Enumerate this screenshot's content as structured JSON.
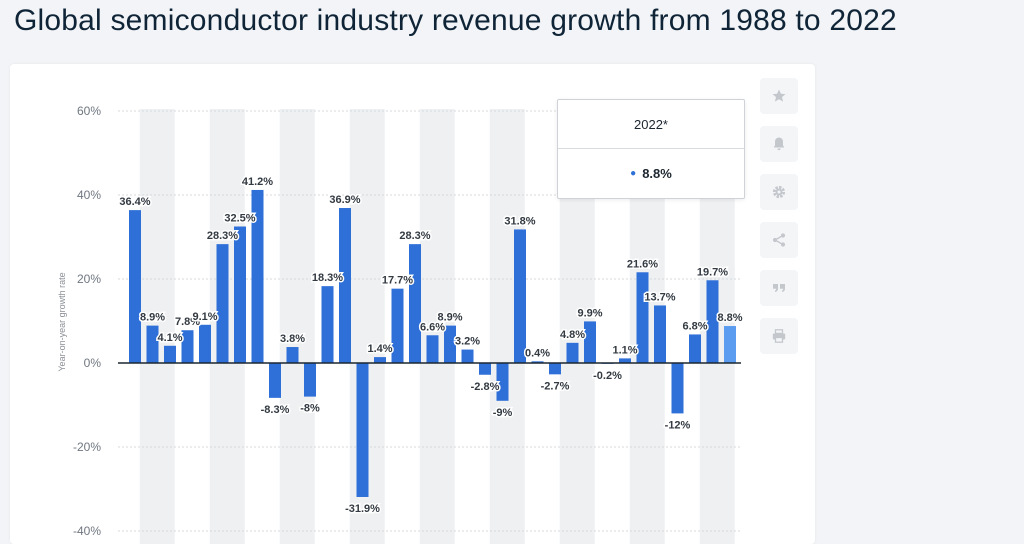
{
  "page": {
    "title": "Global semiconductor industry revenue growth from 1988 to 2022"
  },
  "tooltip": {
    "year": "2022*",
    "value": "8.8%"
  },
  "toolbar": {
    "icons": [
      "star-icon",
      "bell-icon",
      "gear-icon",
      "share-icon",
      "quote-icon",
      "print-icon"
    ]
  },
  "colors": {
    "bar": "#2e6fd8",
    "bar_highlight": "#5b9bf0",
    "band": "#eef0f2",
    "grid": "#d7dadd"
  },
  "chart_data": {
    "type": "bar",
    "title": "Global semiconductor industry revenue growth from 1988 to 2022",
    "ylabel": "Year-on-year growth rate",
    "xlabel": "",
    "ylim": [
      -40,
      60
    ],
    "yticks": [
      "60%",
      "40%",
      "20%",
      "0%",
      "-20%",
      "-40%"
    ],
    "grid": true,
    "values": [
      36.4,
      8.9,
      4.1,
      7.8,
      9.1,
      28.3,
      32.5,
      41.2,
      -8.3,
      3.8,
      -8,
      18.3,
      36.9,
      -31.9,
      1.4,
      17.7,
      28.3,
      6.6,
      8.9,
      3.2,
      -2.8,
      -9,
      31.8,
      0.4,
      -2.7,
      4.8,
      9.9,
      -0.2,
      1.1,
      21.6,
      13.7,
      -12,
      6.8,
      19.7,
      8.8
    ],
    "labels": [
      "36.4%",
      "8.9%",
      "4.1%",
      "7.8%",
      "9.1%",
      "28.3%",
      "32.5%",
      "41.2%",
      "-8.3%",
      "3.8%",
      "-8%",
      "18.3%",
      "36.9%",
      "-31.9%",
      "1.4%",
      "17.7%",
      "28.3%",
      "6.6%",
      "8.9%",
      "3.2%",
      "-2.8%",
      "-9%",
      "31.8%",
      "0.4%",
      "-2.7%",
      "4.8%",
      "9.9%",
      "-0.2%",
      "1.1%",
      "21.6%",
      "13.7%",
      "-12%",
      "6.8%",
      "19.7%",
      "8.8%"
    ],
    "highlight_index": 34
  }
}
